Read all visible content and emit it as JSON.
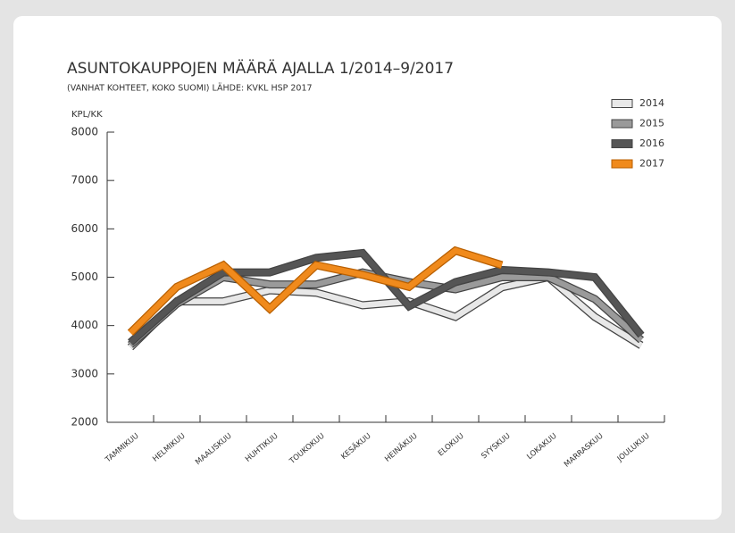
{
  "chart_data": {
    "type": "line",
    "title": "ASUNTOKAUPPOJEN MÄÄRÄ AJALLA 1/2014–9/2017",
    "subtitle": "(VANHAT KOHTEET, KOKO SUOMI) LÄHDE: KVKL HSP 2017",
    "y_label": "KPL/KK",
    "categories": [
      "TAMMIKUU",
      "HELMIKUU",
      "MAALISKUU",
      "HUHTIKUU",
      "TOUKOKUU",
      "KESÄKUU",
      "HEINÄKUU",
      "ELOKUU",
      "SYYSKUU",
      "LOKAKUU",
      "MARRASKUU",
      "JOULUKUU"
    ],
    "series": [
      {
        "name": "2014",
        "color": "#e8e8e8",
        "values": [
          3550,
          4500,
          4500,
          4730,
          4680,
          4420,
          4500,
          4180,
          4790,
          5000,
          4180,
          3590
        ]
      },
      {
        "name": "2015",
        "color": "#9a9a9a",
        "values": [
          3600,
          4450,
          5000,
          4850,
          4850,
          5100,
          4900,
          4750,
          5000,
          5000,
          4550,
          3700
        ]
      },
      {
        "name": "2016",
        "color": "#555555",
        "values": [
          3650,
          4500,
          5100,
          5100,
          5400,
          5500,
          4400,
          4900,
          5150,
          5100,
          5000,
          3800
        ]
      },
      {
        "name": "2017",
        "color": "#f08a1c",
        "values": [
          3850,
          4800,
          5250,
          4350,
          5250,
          5050,
          4800,
          5550,
          5250,
          null,
          null,
          null
        ]
      }
    ],
    "ylim": [
      2000,
      8000
    ],
    "yticks": [
      2000,
      3000,
      4000,
      5000,
      6000,
      7000,
      8000
    ],
    "legend": "top-right"
  }
}
